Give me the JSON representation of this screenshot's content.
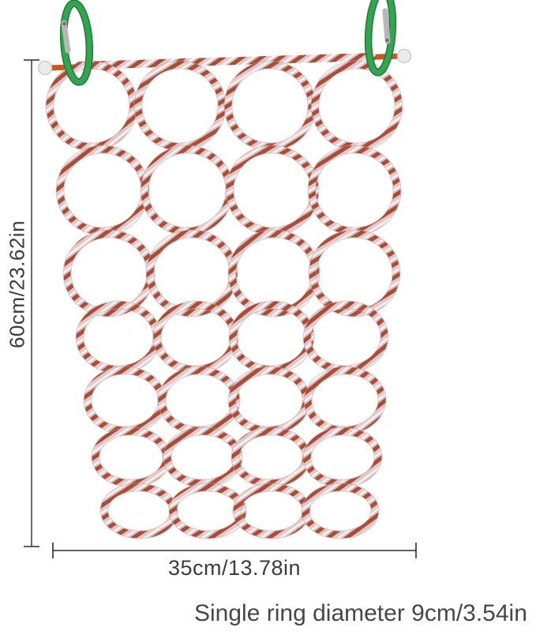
{
  "annotations": {
    "height_label": "60cm/23.62in",
    "width_label": "35cm/13.78in",
    "caption": "Single ring diameter 9cm/3.54in"
  },
  "product": {
    "ring_rows": 7,
    "ring_columns": 4,
    "ring_count": 28,
    "carabiner_count": 2
  },
  "colors": {
    "background": "#ffffff",
    "rope_pink": "#e2c8cb",
    "rope_white": "#f5efee",
    "rope_pink_dark": "#d9bcc0",
    "rope_rust": "#a74e38",
    "rope_edge": "#c49d98",
    "rod_orange": "#c75a22",
    "rod_ball": "#eceaea",
    "rod_ball_edge": "#d0caca",
    "carabiner_green": "#35a452",
    "carabiner_green_dark": "#1d7c35",
    "carabiner_gate_silver": "#b7b7b7",
    "dimension_line": "#2c2c2c",
    "label_text": "#3c3c3c"
  }
}
